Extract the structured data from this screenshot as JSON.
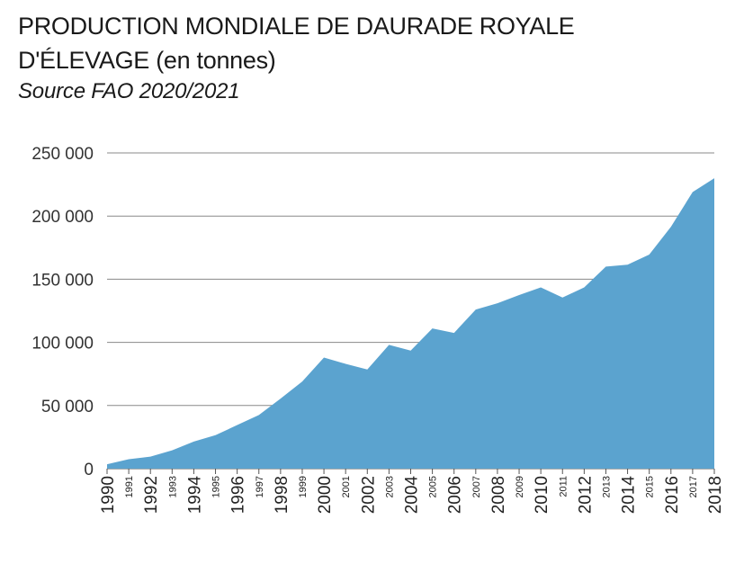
{
  "header": {
    "title_line1": "PRODUCTION MONDIALE DE DAURADE ROYALE",
    "title_line2_caps": "D'ÉLEVAGE",
    "title_line2_rest": " (en tonnes)",
    "source": "Source FAO 2020/2021"
  },
  "colors": {
    "area": "#5ba3cf",
    "grid": "#888888",
    "axis": "#555555"
  },
  "chart_data": {
    "type": "area",
    "title": "PRODUCTION MONDIALE DE DAURADE ROYALE D'ÉLEVAGE (en tonnes)",
    "subtitle": "Source FAO 2020/2021",
    "xlabel": "",
    "ylabel": "",
    "ylim": [
      0,
      250000
    ],
    "yticks": [
      0,
      50000,
      100000,
      150000,
      200000,
      250000
    ],
    "ytick_labels": [
      "0",
      "50 000",
      "100 000",
      "150 000",
      "200 000",
      "250 000"
    ],
    "grid": true,
    "legend": "none",
    "x": [
      1990,
      1991,
      1992,
      1993,
      1994,
      1995,
      1996,
      1997,
      1998,
      1999,
      2000,
      2001,
      2002,
      2003,
      2004,
      2005,
      2006,
      2007,
      2008,
      2009,
      2010,
      2011,
      2012,
      2013,
      2014,
      2015,
      2016,
      2017,
      2018
    ],
    "values": [
      3500,
      7500,
      9500,
      14500,
      21500,
      26500,
      34500,
      42500,
      55500,
      69000,
      88000,
      83000,
      78500,
      98000,
      93500,
      111000,
      107500,
      126000,
      131000,
      137500,
      143500,
      135500,
      143500,
      160000,
      161500,
      169500,
      191500,
      219000,
      230000
    ],
    "x_labels_large": [
      "1990",
      "1992",
      "1994",
      "1996",
      "1998",
      "2000",
      "2002",
      "2004",
      "2006",
      "2008",
      "2010",
      "2012",
      "2014",
      "2016",
      "2018"
    ],
    "x_labels_small": [
      "1991",
      "1993",
      "1995",
      "1997",
      "1999",
      "2001",
      "2003",
      "2005",
      "2007",
      "2009",
      "2011",
      "2013",
      "2015",
      "2017"
    ]
  }
}
